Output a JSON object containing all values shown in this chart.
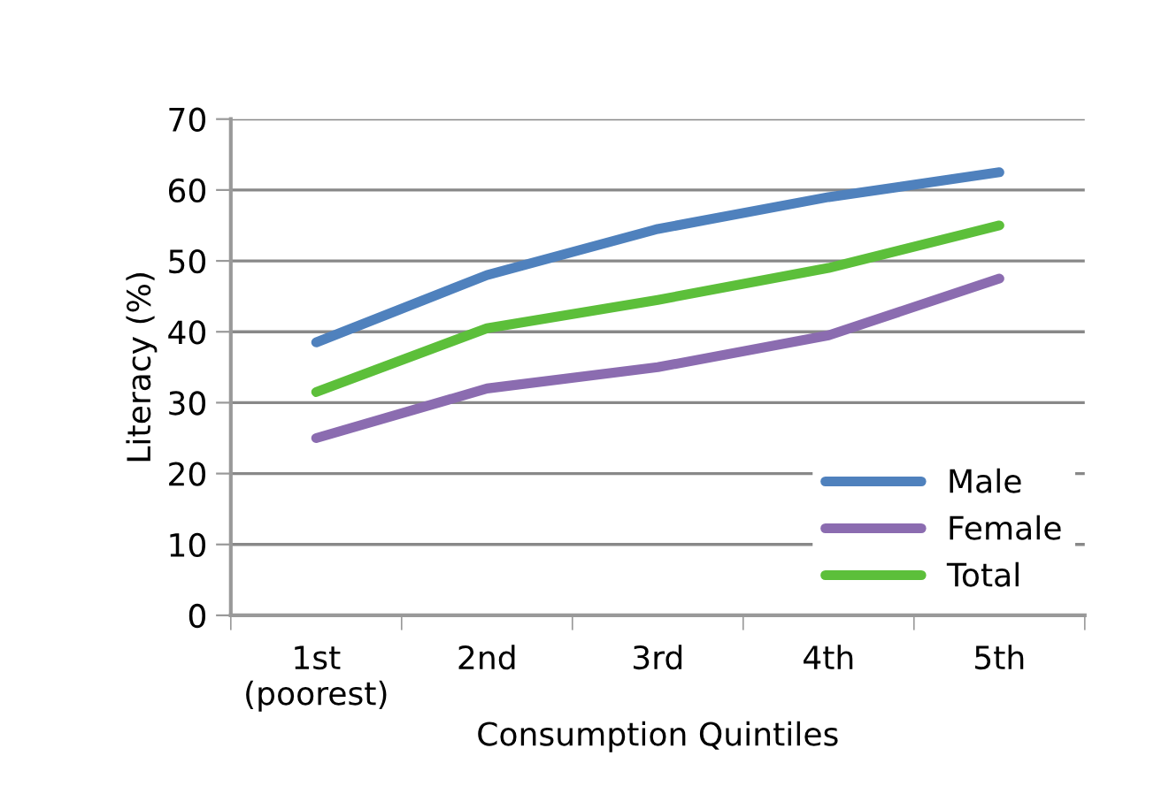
{
  "chart_data": {
    "type": "line",
    "xlabel": "Consumption Quintiles",
    "ylabel": "Literacy (%)",
    "categories": [
      "1st\n(poorest)",
      "2nd",
      "3rd",
      "4th",
      "5th"
    ],
    "series": [
      {
        "name": "Male",
        "color": "#4f81bd",
        "values": [
          38.5,
          48,
          54.5,
          59,
          62.5
        ]
      },
      {
        "name": "Female",
        "color": "#8b6cb0",
        "values": [
          25,
          32,
          35,
          39.5,
          47.5
        ]
      },
      {
        "name": "Total",
        "color": "#5cbf3a",
        "values": [
          31.5,
          40.5,
          44.5,
          49,
          55
        ]
      }
    ],
    "ylim": [
      0,
      70
    ],
    "yticks": [
      0,
      10,
      20,
      30,
      40,
      50,
      60,
      70
    ],
    "grid": "y",
    "legend": "bottom right",
    "marker": "none",
    "line_style": "solid"
  }
}
